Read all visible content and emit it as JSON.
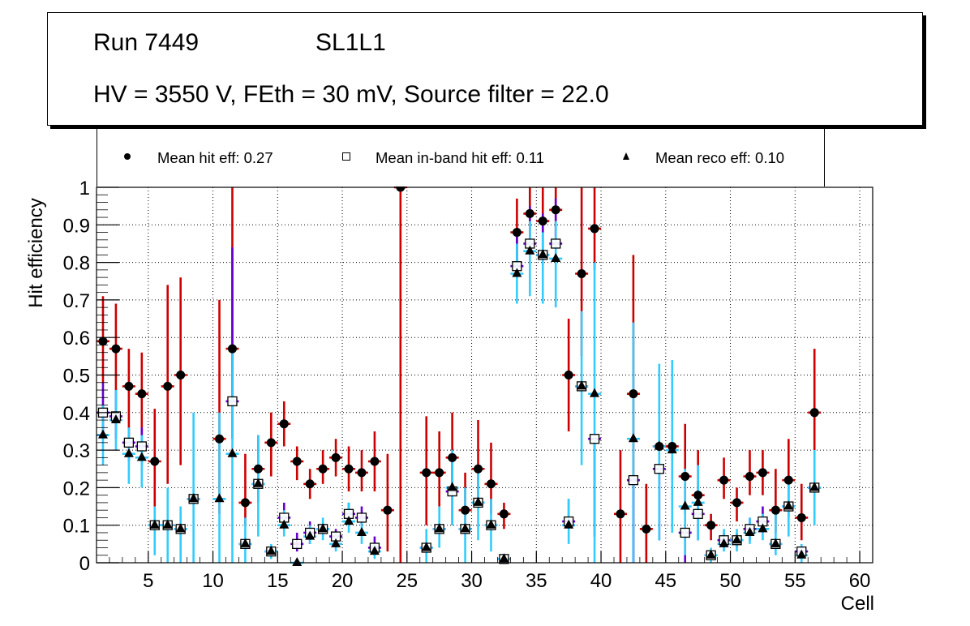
{
  "title": {
    "line1_run": "Run 7449",
    "line1_layer": "SL1L1",
    "line2": "HV = 3550 V, FEth = 30 mV, Source filter = 22.0"
  },
  "legend": [
    {
      "marker": "filled-circle",
      "label": "Mean hit  eff: 0.27"
    },
    {
      "marker": "open-square",
      "label": "Mean in-band hit eff: 0.11"
    },
    {
      "marker": "filled-triangle",
      "label": "Mean reco eff: 0.10"
    }
  ],
  "colors": {
    "hit_err": "#cc0000",
    "inband_err": "#6600cc",
    "reco_err": "#33ccff",
    "marker": "#000000"
  },
  "chart_data": {
    "type": "scatter",
    "title": "Run 7449 SL1L1 — HV = 3550 V, FEth = 30 mV, Source filter = 22.0",
    "xlabel": "Cell",
    "ylabel": "Hit efficiency",
    "xlim": [
      1,
      61
    ],
    "ylim": [
      0,
      1
    ],
    "xticks": [
      5,
      10,
      15,
      20,
      25,
      30,
      35,
      40,
      45,
      50,
      55,
      60
    ],
    "yticks": [
      0,
      0.1,
      0.2,
      0.3,
      0.4,
      0.5,
      0.6,
      0.7,
      0.8,
      0.9,
      1
    ],
    "ytick_labels": [
      "0",
      "0.1",
      "0.2",
      "0.3",
      "0.4",
      "0.5",
      "0.6",
      "0.7",
      "0.8",
      "0.9",
      "1"
    ],
    "grid": true,
    "legend_position": "top",
    "series": [
      {
        "name": "Mean hit  eff: 0.27",
        "marker": "filled-circle",
        "points": [
          {
            "x": 1.5,
            "y": 0.59,
            "lo": 0.48,
            "hi": 0.71
          },
          {
            "x": 2.5,
            "y": 0.57,
            "lo": 0.46,
            "hi": 0.69
          },
          {
            "x": 3.5,
            "y": 0.47,
            "lo": 0.36,
            "hi": 0.57
          },
          {
            "x": 4.5,
            "y": 0.45,
            "lo": 0.34,
            "hi": 0.56
          },
          {
            "x": 5.5,
            "y": 0.27,
            "lo": 0.15,
            "hi": 0.41
          },
          {
            "x": 6.5,
            "y": 0.47,
            "lo": 0.21,
            "hi": 0.74
          },
          {
            "x": 7.5,
            "y": 0.5,
            "lo": 0.26,
            "hi": 0.76
          },
          {
            "x": 8.5,
            "y": 0.17,
            "lo": 0.17,
            "hi": 0.17
          },
          {
            "x": 10.5,
            "y": 0.33,
            "lo": 0.13,
            "hi": 0.7
          },
          {
            "x": 11.5,
            "y": 0.57,
            "lo": 0.33,
            "hi": 1.0
          },
          {
            "x": 12.5,
            "y": 0.16,
            "lo": 0.1,
            "hi": 0.29
          },
          {
            "x": 13.5,
            "y": 0.25,
            "lo": 0.16,
            "hi": 0.34
          },
          {
            "x": 14.5,
            "y": 0.32,
            "lo": 0.23,
            "hi": 0.4
          },
          {
            "x": 15.5,
            "y": 0.37,
            "lo": 0.31,
            "hi": 0.43
          },
          {
            "x": 16.5,
            "y": 0.27,
            "lo": 0.22,
            "hi": 0.31
          },
          {
            "x": 17.5,
            "y": 0.21,
            "lo": 0.17,
            "hi": 0.25
          },
          {
            "x": 18.5,
            "y": 0.25,
            "lo": 0.21,
            "hi": 0.3
          },
          {
            "x": 19.5,
            "y": 0.28,
            "lo": 0.23,
            "hi": 0.33
          },
          {
            "x": 20.5,
            "y": 0.25,
            "lo": 0.19,
            "hi": 0.31
          },
          {
            "x": 21.5,
            "y": 0.24,
            "lo": 0.19,
            "hi": 0.3
          },
          {
            "x": 22.5,
            "y": 0.27,
            "lo": 0.19,
            "hi": 0.35
          },
          {
            "x": 23.5,
            "y": 0.14,
            "lo": 0.03,
            "hi": 0.29
          },
          {
            "x": 24.5,
            "y": 1.0,
            "lo": 0.0,
            "hi": 1.0
          },
          {
            "x": 26.5,
            "y": 0.24,
            "lo": 0.1,
            "hi": 0.39
          },
          {
            "x": 27.5,
            "y": 0.24,
            "lo": 0.15,
            "hi": 0.35
          },
          {
            "x": 28.5,
            "y": 0.28,
            "lo": 0.19,
            "hi": 0.4
          },
          {
            "x": 29.5,
            "y": 0.14,
            "lo": 0.09,
            "hi": 0.24
          },
          {
            "x": 30.5,
            "y": 0.25,
            "lo": 0.16,
            "hi": 0.38
          },
          {
            "x": 31.5,
            "y": 0.21,
            "lo": 0.13,
            "hi": 0.32
          },
          {
            "x": 32.5,
            "y": 0.13,
            "lo": 0.09,
            "hi": 0.16
          },
          {
            "x": 33.5,
            "y": 0.88,
            "lo": 0.78,
            "hi": 0.97
          },
          {
            "x": 34.5,
            "y": 0.93,
            "lo": 0.87,
            "hi": 1.0
          },
          {
            "x": 35.5,
            "y": 0.91,
            "lo": 0.83,
            "hi": 1.0
          },
          {
            "x": 36.5,
            "y": 0.94,
            "lo": 0.87,
            "hi": 1.0
          },
          {
            "x": 37.5,
            "y": 0.5,
            "lo": 0.35,
            "hi": 0.65
          },
          {
            "x": 38.5,
            "y": 0.77,
            "lo": 0.55,
            "hi": 1.0
          },
          {
            "x": 39.5,
            "y": 0.89,
            "lo": 0.78,
            "hi": 1.0
          },
          {
            "x": 41.5,
            "y": 0.13,
            "lo": 0.0,
            "hi": 0.3
          },
          {
            "x": 42.5,
            "y": 0.45,
            "lo": 0.0,
            "hi": 0.82
          },
          {
            "x": 43.5,
            "y": 0.09,
            "lo": 0.0,
            "hi": 0.21
          },
          {
            "x": 44.5,
            "y": 0.31,
            "lo": 0.31,
            "hi": 0.31
          },
          {
            "x": 45.5,
            "y": 0.31,
            "lo": 0.31,
            "hi": 0.31
          },
          {
            "x": 46.5,
            "y": 0.23,
            "lo": 0.13,
            "hi": 0.37
          },
          {
            "x": 47.5,
            "y": 0.18,
            "lo": 0.12,
            "hi": 0.3
          },
          {
            "x": 48.5,
            "y": 0.1,
            "lo": 0.06,
            "hi": 0.13
          },
          {
            "x": 49.5,
            "y": 0.22,
            "lo": 0.17,
            "hi": 0.28
          },
          {
            "x": 50.5,
            "y": 0.16,
            "lo": 0.11,
            "hi": 0.2
          },
          {
            "x": 51.5,
            "y": 0.23,
            "lo": 0.18,
            "hi": 0.3
          },
          {
            "x": 52.5,
            "y": 0.24,
            "lo": 0.18,
            "hi": 0.3
          },
          {
            "x": 53.5,
            "y": 0.14,
            "lo": 0.08,
            "hi": 0.25
          },
          {
            "x": 54.5,
            "y": 0.22,
            "lo": 0.12,
            "hi": 0.33
          },
          {
            "x": 55.5,
            "y": 0.12,
            "lo": 0.06,
            "hi": 0.21
          },
          {
            "x": 56.5,
            "y": 0.4,
            "lo": 0.3,
            "hi": 0.57
          }
        ]
      },
      {
        "name": "Mean in-band hit eff: 0.11",
        "marker": "open-square",
        "points": [
          {
            "x": 1.5,
            "y": 0.4,
            "lo": 0.33,
            "hi": 0.48
          },
          {
            "x": 2.5,
            "y": 0.39,
            "lo": 0.33,
            "hi": 0.46
          },
          {
            "x": 3.5,
            "y": 0.32,
            "lo": 0.27,
            "hi": 0.36
          },
          {
            "x": 4.5,
            "y": 0.31,
            "lo": 0.26,
            "hi": 0.36
          },
          {
            "x": 5.5,
            "y": 0.1,
            "lo": 0.1,
            "hi": 0.1
          },
          {
            "x": 6.5,
            "y": 0.1,
            "lo": 0.1,
            "hi": 0.1
          },
          {
            "x": 7.5,
            "y": 0.09,
            "lo": 0.09,
            "hi": 0.09
          },
          {
            "x": 8.5,
            "y": 0.17,
            "lo": 0.17,
            "hi": 0.17
          },
          {
            "x": 11.5,
            "y": 0.43,
            "lo": 0.43,
            "hi": 0.84
          },
          {
            "x": 12.5,
            "y": 0.05,
            "lo": 0.05,
            "hi": 0.05
          },
          {
            "x": 13.5,
            "y": 0.21,
            "lo": 0.21,
            "hi": 0.21
          },
          {
            "x": 14.5,
            "y": 0.03,
            "lo": 0.03,
            "hi": 0.03
          },
          {
            "x": 15.5,
            "y": 0.12,
            "lo": 0.09,
            "hi": 0.16
          },
          {
            "x": 16.5,
            "y": 0.05,
            "lo": 0.03,
            "hi": 0.08
          },
          {
            "x": 17.5,
            "y": 0.08,
            "lo": 0.05,
            "hi": 0.11
          },
          {
            "x": 18.5,
            "y": 0.09,
            "lo": 0.09,
            "hi": 0.09
          },
          {
            "x": 19.5,
            "y": 0.07,
            "lo": 0.04,
            "hi": 0.09
          },
          {
            "x": 20.5,
            "y": 0.13,
            "lo": 0.1,
            "hi": 0.16
          },
          {
            "x": 21.5,
            "y": 0.12,
            "lo": 0.1,
            "hi": 0.15
          },
          {
            "x": 22.5,
            "y": 0.04,
            "lo": 0.02,
            "hi": 0.07
          },
          {
            "x": 26.5,
            "y": 0.04,
            "lo": 0.04,
            "hi": 0.04
          },
          {
            "x": 27.5,
            "y": 0.09,
            "lo": 0.09,
            "hi": 0.09
          },
          {
            "x": 28.5,
            "y": 0.19,
            "lo": 0.1,
            "hi": 0.28
          },
          {
            "x": 29.5,
            "y": 0.09,
            "lo": 0.09,
            "hi": 0.09
          },
          {
            "x": 30.5,
            "y": 0.16,
            "lo": 0.16,
            "hi": 0.16
          },
          {
            "x": 31.5,
            "y": 0.1,
            "lo": 0.1,
            "hi": 0.1
          },
          {
            "x": 32.5,
            "y": 0.01,
            "lo": 0.01,
            "hi": 0.01
          },
          {
            "x": 33.5,
            "y": 0.79,
            "lo": 0.79,
            "hi": 0.87
          },
          {
            "x": 34.5,
            "y": 0.85,
            "lo": 0.85,
            "hi": 0.95
          },
          {
            "x": 35.5,
            "y": 0.82,
            "lo": 0.82,
            "hi": 0.93
          },
          {
            "x": 36.5,
            "y": 0.85,
            "lo": 0.85,
            "hi": 0.97
          },
          {
            "x": 37.5,
            "y": 0.11,
            "lo": 0.11,
            "hi": 0.17
          },
          {
            "x": 38.5,
            "y": 0.47,
            "lo": 0.47,
            "hi": 0.47
          },
          {
            "x": 39.5,
            "y": 0.33,
            "lo": 0.07,
            "hi": 0.33
          },
          {
            "x": 42.5,
            "y": 0.22,
            "lo": 0.0,
            "hi": 0.22
          },
          {
            "x": 44.5,
            "y": 0.25,
            "lo": 0.06,
            "hi": 0.25
          },
          {
            "x": 46.5,
            "y": 0.08,
            "lo": 0.0,
            "hi": 0.08
          },
          {
            "x": 47.5,
            "y": 0.13,
            "lo": 0.06,
            "hi": 0.13
          },
          {
            "x": 48.5,
            "y": 0.02,
            "lo": 0.02,
            "hi": 0.02
          },
          {
            "x": 49.5,
            "y": 0.06,
            "lo": 0.04,
            "hi": 0.08
          },
          {
            "x": 50.5,
            "y": 0.06,
            "lo": 0.04,
            "hi": 0.08
          },
          {
            "x": 51.5,
            "y": 0.09,
            "lo": 0.06,
            "hi": 0.12
          },
          {
            "x": 52.5,
            "y": 0.11,
            "lo": 0.08,
            "hi": 0.15
          },
          {
            "x": 53.5,
            "y": 0.05,
            "lo": 0.05,
            "hi": 0.05
          },
          {
            "x": 54.5,
            "y": 0.15,
            "lo": 0.15,
            "hi": 0.15
          },
          {
            "x": 55.5,
            "y": 0.03,
            "lo": 0.03,
            "hi": 0.03
          },
          {
            "x": 56.5,
            "y": 0.2,
            "lo": 0.2,
            "hi": 0.2
          }
        ]
      },
      {
        "name": "Mean reco eff: 0.10",
        "marker": "filled-triangle",
        "points": [
          {
            "x": 1.5,
            "y": 0.34,
            "lo": 0.26,
            "hi": 0.42
          },
          {
            "x": 2.5,
            "y": 0.38,
            "lo": 0.3,
            "hi": 0.46
          },
          {
            "x": 3.5,
            "y": 0.29,
            "lo": 0.21,
            "hi": 0.36
          },
          {
            "x": 4.5,
            "y": 0.28,
            "lo": 0.2,
            "hi": 0.34
          },
          {
            "x": 5.5,
            "y": 0.1,
            "lo": 0.02,
            "hi": 0.15
          },
          {
            "x": 6.5,
            "y": 0.1,
            "lo": 0.0,
            "hi": 0.2
          },
          {
            "x": 7.5,
            "y": 0.09,
            "lo": 0.0,
            "hi": 0.15
          },
          {
            "x": 8.5,
            "y": 0.17,
            "lo": 0.0,
            "hi": 0.4
          },
          {
            "x": 10.5,
            "y": 0.17,
            "lo": 0.0,
            "hi": 0.4
          },
          {
            "x": 11.5,
            "y": 0.29,
            "lo": 0.0,
            "hi": 0.57
          },
          {
            "x": 12.5,
            "y": 0.05,
            "lo": 0.0,
            "hi": 0.12
          },
          {
            "x": 13.5,
            "y": 0.21,
            "lo": 0.07,
            "hi": 0.34
          },
          {
            "x": 14.5,
            "y": 0.03,
            "lo": 0.01,
            "hi": 0.05
          },
          {
            "x": 15.5,
            "y": 0.1,
            "lo": 0.07,
            "hi": 0.14
          },
          {
            "x": 16.5,
            "y": 0.0,
            "lo": 0.0,
            "hi": 0.0
          },
          {
            "x": 17.5,
            "y": 0.07,
            "lo": 0.05,
            "hi": 0.1
          },
          {
            "x": 18.5,
            "y": 0.09,
            "lo": 0.06,
            "hi": 0.12
          },
          {
            "x": 19.5,
            "y": 0.05,
            "lo": 0.03,
            "hi": 0.08
          },
          {
            "x": 20.5,
            "y": 0.11,
            "lo": 0.08,
            "hi": 0.16
          },
          {
            "x": 21.5,
            "y": 0.08,
            "lo": 0.05,
            "hi": 0.12
          },
          {
            "x": 22.5,
            "y": 0.03,
            "lo": 0.01,
            "hi": 0.05
          },
          {
            "x": 26.5,
            "y": 0.04,
            "lo": 0.0,
            "hi": 0.09
          },
          {
            "x": 27.5,
            "y": 0.09,
            "lo": 0.04,
            "hi": 0.15
          },
          {
            "x": 28.5,
            "y": 0.2,
            "lo": 0.1,
            "hi": 0.3
          },
          {
            "x": 29.5,
            "y": 0.09,
            "lo": 0.0,
            "hi": 0.2
          },
          {
            "x": 30.5,
            "y": 0.16,
            "lo": 0.06,
            "hi": 0.25
          },
          {
            "x": 31.5,
            "y": 0.1,
            "lo": 0.03,
            "hi": 0.17
          },
          {
            "x": 32.5,
            "y": 0.01,
            "lo": 0.0,
            "hi": 0.02
          },
          {
            "x": 33.5,
            "y": 0.77,
            "lo": 0.69,
            "hi": 0.85
          },
          {
            "x": 34.5,
            "y": 0.83,
            "lo": 0.71,
            "hi": 0.91
          },
          {
            "x": 35.5,
            "y": 0.82,
            "lo": 0.69,
            "hi": 0.88
          },
          {
            "x": 36.5,
            "y": 0.81,
            "lo": 0.68,
            "hi": 0.91
          },
          {
            "x": 37.5,
            "y": 0.1,
            "lo": 0.05,
            "hi": 0.17
          },
          {
            "x": 38.5,
            "y": 0.47,
            "lo": 0.26,
            "hi": 0.67
          },
          {
            "x": 39.5,
            "y": 0.45,
            "lo": 0.0,
            "hi": 0.8
          },
          {
            "x": 42.5,
            "y": 0.33,
            "lo": 0.0,
            "hi": 0.64
          },
          {
            "x": 44.5,
            "y": 0.31,
            "lo": 0.06,
            "hi": 0.53
          },
          {
            "x": 45.5,
            "y": 0.3,
            "lo": 0.08,
            "hi": 0.54
          },
          {
            "x": 46.5,
            "y": 0.15,
            "lo": 0.02,
            "hi": 0.25
          },
          {
            "x": 47.5,
            "y": 0.16,
            "lo": 0.06,
            "hi": 0.26
          },
          {
            "x": 48.5,
            "y": 0.02,
            "lo": 0.0,
            "hi": 0.04
          },
          {
            "x": 49.5,
            "y": 0.05,
            "lo": 0.03,
            "hi": 0.09
          },
          {
            "x": 50.5,
            "y": 0.06,
            "lo": 0.03,
            "hi": 0.09
          },
          {
            "x": 51.5,
            "y": 0.08,
            "lo": 0.05,
            "hi": 0.12
          },
          {
            "x": 52.5,
            "y": 0.09,
            "lo": 0.06,
            "hi": 0.13
          },
          {
            "x": 53.5,
            "y": 0.05,
            "lo": 0.02,
            "hi": 0.13
          },
          {
            "x": 54.5,
            "y": 0.15,
            "lo": 0.07,
            "hi": 0.23
          },
          {
            "x": 55.5,
            "y": 0.02,
            "lo": 0.0,
            "hi": 0.05
          },
          {
            "x": 56.5,
            "y": 0.2,
            "lo": 0.1,
            "hi": 0.3
          }
        ]
      }
    ]
  }
}
